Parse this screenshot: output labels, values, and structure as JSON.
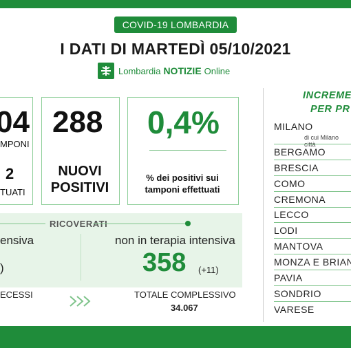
{
  "header": {
    "region_pill": "COVID-19 LOMBARDIA",
    "headline": "I DATI DI MARTEDÌ 05/10/2021",
    "logo": {
      "part1": "Lombardia",
      "part2": "NOTIZIE",
      "part3": "Online"
    }
  },
  "stats": {
    "tamponi": {
      "number": "04",
      "label": "MPONI",
      "sub_number": "2",
      "sub_label": "TUATI"
    },
    "nuovi_positivi": {
      "number": "288",
      "label_line1": "NUOVI",
      "label_line2": "POSITIVI"
    },
    "percentuale": {
      "number": "0,4%",
      "label_line1": "% dei positivi sui",
      "label_line2": "tamponi effettuati"
    }
  },
  "ricoverati": {
    "title": "RICOVERATI",
    "intensiva_fragment": "ensiva",
    "non_intensiva_label": "non in terapia intensiva",
    "non_intensiva_value": "358",
    "non_intensiva_delta": "(+11)",
    "paren_fragment": ")"
  },
  "footer_stats": {
    "decessi_fragment": "ECESSI",
    "totale_label": "TOTALE COMPLESSIVO",
    "totale_value": "34.067"
  },
  "provinces": {
    "heading_line1": "INCREME",
    "heading_line2": "PER PR",
    "milano_sub": "di cui Milano città",
    "items": [
      "MILANO",
      "BERGAMO",
      "BRESCIA",
      "COMO",
      "CREMONA",
      "LECCO",
      "LODI",
      "MANTOVA",
      "MONZA E BRIAN",
      "PAVIA",
      "SONDRIO",
      "VARESE"
    ]
  },
  "colors": {
    "brand_green": "#1f8c3a",
    "light_green": "#e7f4e8",
    "border_green": "#8fcf9a"
  }
}
